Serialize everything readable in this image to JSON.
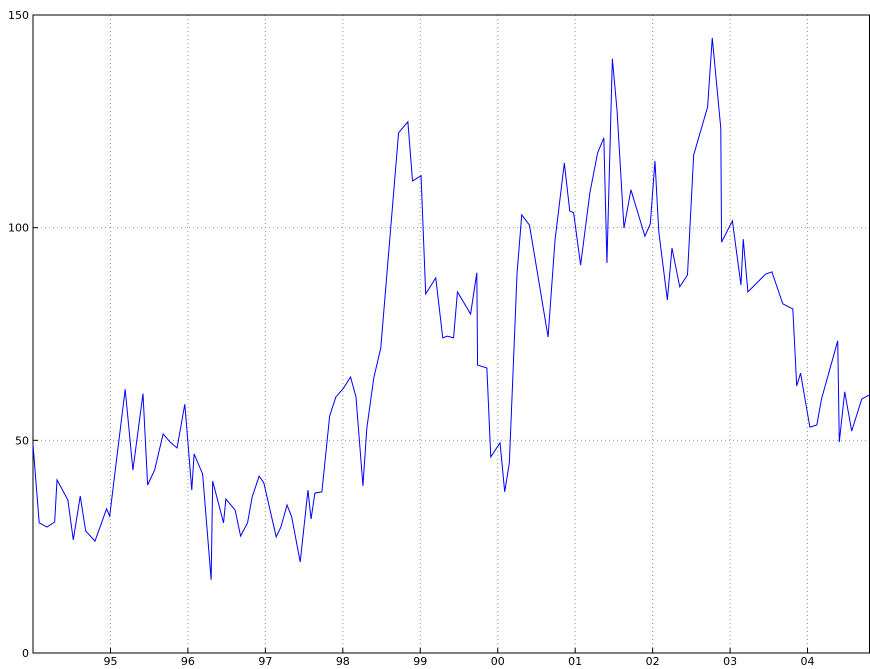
{
  "chart_data": {
    "type": "line",
    "x": [
      1994.0,
      1994.08,
      1994.18,
      1994.28,
      1994.31,
      1994.45,
      1994.52,
      1994.61,
      1994.68,
      1994.8,
      1994.95,
      1994.99,
      1995.19,
      1995.29,
      1995.42,
      1995.48,
      1995.57,
      1995.68,
      1995.77,
      1995.86,
      1995.96,
      1996.05,
      1996.08,
      1996.19,
      1996.3,
      1996.32,
      1996.46,
      1996.49,
      1996.61,
      1996.68,
      1996.77,
      1996.83,
      1996.92,
      1996.98,
      1997.14,
      1997.2,
      1997.28,
      1997.34,
      1997.45,
      1997.55,
      1997.59,
      1997.64,
      1997.73,
      1997.83,
      1997.91,
      1998.01,
      1998.1,
      1998.17,
      1998.26,
      1998.31,
      1998.4,
      1998.49,
      1998.72,
      1998.84,
      1998.9,
      1999.01,
      1999.07,
      1999.2,
      1999.29,
      1999.35,
      1999.43,
      1999.48,
      1999.65,
      1999.73,
      1999.74,
      1999.86,
      1999.91,
      2000.03,
      2000.09,
      2000.15,
      2000.25,
      2000.31,
      2000.41,
      2000.65,
      2000.74,
      2000.86,
      2000.93,
      2000.98,
      2001.07,
      2001.19,
      2001.29,
      2001.37,
      2001.41,
      2001.48,
      2001.54,
      2001.63,
      2001.72,
      2001.9,
      2001.97,
      2002.03,
      2002.08,
      2002.19,
      2002.25,
      2002.35,
      2002.45,
      2002.53,
      2002.71,
      2002.77,
      2002.88,
      2002.89,
      2003.03,
      2003.14,
      2003.17,
      2003.23,
      2003.46,
      2003.54,
      2003.68,
      2003.81,
      2003.86,
      2003.91,
      2004.03,
      2004.12,
      2004.18,
      2004.39,
      2004.41,
      2004.48,
      2004.57,
      2004.7,
      2004.8
    ],
    "series": [
      {
        "color": "#0000ff",
        "values": [
          49,
          30.6,
          29.6,
          30.8,
          40.7,
          36,
          26.6,
          36.9,
          28.7,
          26.3,
          33.9,
          32.2,
          62,
          43,
          61,
          39.5,
          43,
          51.5,
          49.6,
          48.2,
          58.5,
          38.3,
          46.8,
          42.1,
          17.2,
          40.4,
          30.6,
          36.2,
          33.6,
          27.5,
          30.6,
          36.7,
          41.6,
          40,
          27.3,
          29.6,
          34.8,
          32,
          21.4,
          38.3,
          31.5,
          37.6,
          37.9,
          55.7,
          60.2,
          62.3,
          64.9,
          60.2,
          39.3,
          52.9,
          64.7,
          71.7,
          122.3,
          124.9,
          111,
          112.2,
          84.4,
          88.2,
          74.1,
          74.5,
          74.1,
          84.9,
          79.7,
          89.4,
          67.7,
          67,
          46.1,
          49.4,
          37.9,
          44.7,
          89.4,
          103,
          100.6,
          74.3,
          97.1,
          115.2,
          103.9,
          103.5,
          91.2,
          108.2,
          117.6,
          121.1,
          91.7,
          139.7,
          127.7,
          99.9,
          108.9,
          98,
          100.9,
          115.7,
          99,
          83,
          95.2,
          86.1,
          88.9,
          117.1,
          128.4,
          144.6,
          123.4,
          96.6,
          101.6,
          86.5,
          97.3,
          84.9,
          89.1,
          89.6,
          82.1,
          80.9,
          62.8,
          65.8,
          53.1,
          53.6,
          59.7,
          73.4,
          49.6,
          61.4,
          52.2,
          59.7,
          60.7
        ]
      }
    ],
    "xlim": [
      1994,
      2004.8
    ],
    "xticks": [
      {
        "value": 1995,
        "label": "95"
      },
      {
        "value": 1996,
        "label": "96"
      },
      {
        "value": 1997,
        "label": "97"
      },
      {
        "value": 1998,
        "label": "98"
      },
      {
        "value": 1999,
        "label": "99"
      },
      {
        "value": 2000,
        "label": "00"
      },
      {
        "value": 2001,
        "label": "01"
      },
      {
        "value": 2002,
        "label": "02"
      },
      {
        "value": 2003,
        "label": "03"
      },
      {
        "value": 2004,
        "label": "04"
      }
    ],
    "ylim": [
      0,
      150
    ],
    "yticks": [
      0,
      50,
      100,
      150
    ],
    "grid": true
  }
}
